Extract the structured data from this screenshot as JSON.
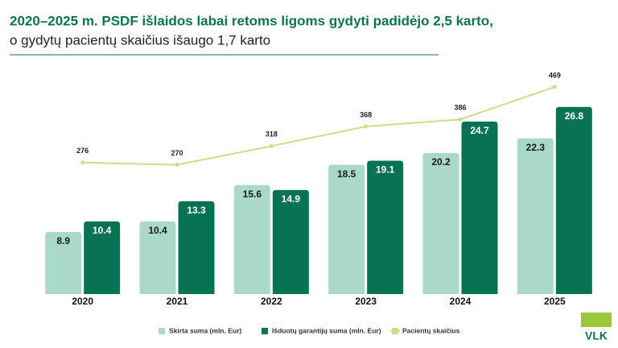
{
  "chart_data": {
    "type": "bar",
    "title": "2020–2025 m. PSDF išlaidos labai retoms ligoms gydyti padidėjo 2,5 karto,",
    "subtitle": "o gydytų pacientų skaičius išaugo 1,7 karto",
    "categories": [
      "2020",
      "2021",
      "2022",
      "2023",
      "2024",
      "2025"
    ],
    "series": [
      {
        "name": "Skirta suma (mln. Eur)",
        "color": "#a8d9c9",
        "values": [
          8.9,
          10.4,
          15.6,
          18.5,
          20.2,
          22.3
        ]
      },
      {
        "name": "Išduotų garantijų suma (mln. Eur)",
        "color": "#087352",
        "values": [
          10.4,
          13.3,
          14.9,
          19.1,
          24.7,
          26.8
        ]
      },
      {
        "name": "Pacientų skaičius",
        "color": "#cddb8e",
        "type": "line",
        "axis": "y2",
        "values": [
          276,
          270,
          318,
          368,
          386,
          469
        ]
      }
    ],
    "ylim": [
      0,
      30
    ],
    "y2lim": [
      -60,
      475
    ],
    "grid": false,
    "legend": "bottom",
    "logo": "VLK"
  }
}
